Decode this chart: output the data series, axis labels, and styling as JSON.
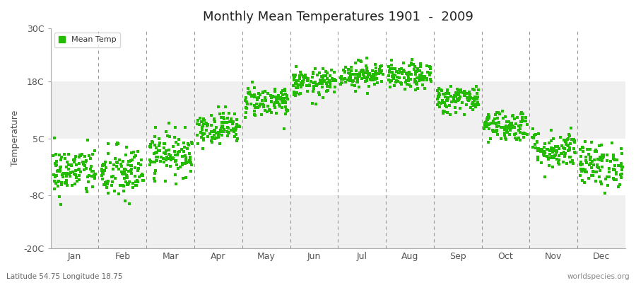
{
  "title": "Monthly Mean Temperatures 1901  -  2009",
  "ylabel": "Temperature",
  "ylim": [
    -20,
    30
  ],
  "yticks": [
    -20,
    -8,
    5,
    18,
    30
  ],
  "ytick_labels": [
    "-20C",
    "-8C",
    "5C",
    "18C",
    "30C"
  ],
  "months": [
    "Jan",
    "Feb",
    "Mar",
    "Apr",
    "May",
    "Jun",
    "Jul",
    "Aug",
    "Sep",
    "Oct",
    "Nov",
    "Dec"
  ],
  "dot_color": "#22bb00",
  "fig_bg_color": "#ffffff",
  "plot_bg_color": "#ffffff",
  "legend_label": "Mean Temp",
  "subtitle_left": "Latitude 54.75 Longitude 18.75",
  "subtitle_right": "worldspecies.org",
  "years": 109,
  "mean_temps": [
    -2.5,
    -3.0,
    1.5,
    7.5,
    13.5,
    17.5,
    19.5,
    19.0,
    14.0,
    8.0,
    2.5,
    -1.0
  ],
  "std_temps": [
    2.8,
    3.2,
    2.5,
    1.8,
    1.8,
    1.6,
    1.5,
    1.5,
    1.6,
    1.8,
    2.2,
    2.5
  ],
  "seed": 42,
  "band_colors": [
    "#f0f0f0",
    "#ffffff",
    "#f0f0f0",
    "#ffffff",
    "#f0f0f0"
  ],
  "dashed_line_color": "#999999",
  "dot_size": 5
}
